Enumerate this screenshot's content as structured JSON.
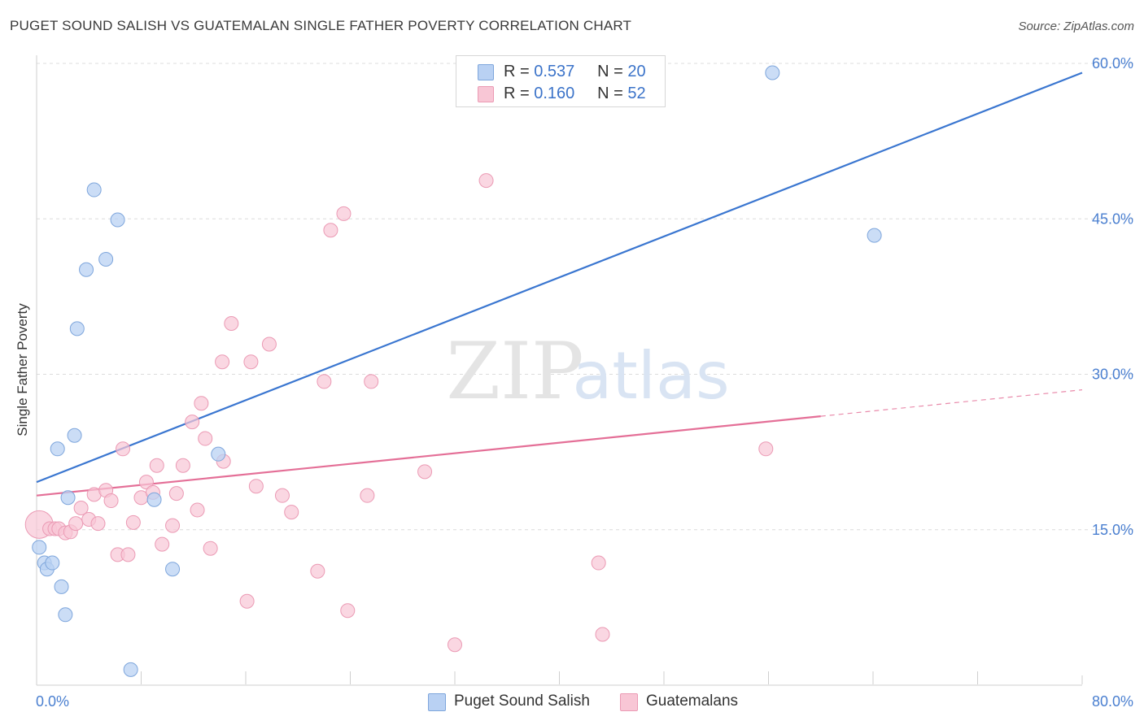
{
  "header": {
    "title": "PUGET SOUND SALISH VS GUATEMALAN SINGLE FATHER POVERTY CORRELATION CHART",
    "source": "Source: ZipAtlas.com"
  },
  "watermark": {
    "zip": "ZIP",
    "atlas": "atlas"
  },
  "legend_top": [
    {
      "r_label": "R = ",
      "r_value": "0.537",
      "n_label": "N = ",
      "n_value": "20"
    },
    {
      "r_label": "R = ",
      "r_value": "0.160",
      "n_label": "N = ",
      "n_value": "52"
    }
  ],
  "legend_bottom": [
    {
      "label": "Puget Sound Salish"
    },
    {
      "label": "Guatemalans"
    }
  ],
  "colors": {
    "blue_fill": "#b9d1f3",
    "blue_stroke": "#7ea6dc",
    "blue_line": "#3a76d0",
    "pink_fill": "#f8c6d5",
    "pink_stroke": "#eb9ab4",
    "pink_line": "#e46f97",
    "axis_text": "#4a7fd0",
    "grid": "#dcdcdc"
  },
  "chart_data": {
    "type": "scatter",
    "title": "PUGET SOUND SALISH VS GUATEMALAN SINGLE FATHER POVERTY CORRELATION CHART",
    "xlabel": "",
    "ylabel": "Single Father Poverty",
    "xlim": [
      0,
      80
    ],
    "ylim": [
      0,
      60
    ],
    "x_tick_labels": [
      {
        "value": 0,
        "label": "0.0%"
      },
      {
        "value": 80,
        "label": "80.0%"
      }
    ],
    "y_tick_labels": [
      {
        "value": 15,
        "label": "15.0%"
      },
      {
        "value": 30,
        "label": "30.0%"
      },
      {
        "value": 45,
        "label": "45.0%"
      },
      {
        "value": 60,
        "label": "60.0%"
      }
    ],
    "grid": true,
    "legend_position": "top-center",
    "series": [
      {
        "name": "Puget Sound Salish",
        "color": "blue",
        "points": [
          [
            0.2,
            13.3
          ],
          [
            0.6,
            11.8
          ],
          [
            0.8,
            11.2
          ],
          [
            1.2,
            11.8
          ],
          [
            1.6,
            22.8
          ],
          [
            1.9,
            9.5
          ],
          [
            2.2,
            6.8
          ],
          [
            2.4,
            18.1
          ],
          [
            2.9,
            24.1
          ],
          [
            3.1,
            34.4
          ],
          [
            3.8,
            40.1
          ],
          [
            4.4,
            47.8
          ],
          [
            5.3,
            41.1
          ],
          [
            6.2,
            44.9
          ],
          [
            7.2,
            1.5
          ],
          [
            9.0,
            17.9
          ],
          [
            10.4,
            11.2
          ],
          [
            13.9,
            22.3
          ],
          [
            56.3,
            59.1
          ],
          [
            64.1,
            43.4
          ]
        ],
        "trend": {
          "x": [
            0,
            80
          ],
          "y": [
            19.6,
            59.1
          ]
        }
      },
      {
        "name": "Guatemalans",
        "color": "pink",
        "points": [
          [
            0.2,
            15.5
          ],
          [
            1.0,
            15.1
          ],
          [
            1.4,
            15.1
          ],
          [
            1.7,
            15.1
          ],
          [
            2.2,
            14.7
          ],
          [
            2.6,
            14.8
          ],
          [
            3.0,
            15.6
          ],
          [
            3.4,
            17.1
          ],
          [
            4.0,
            16.0
          ],
          [
            4.4,
            18.4
          ],
          [
            4.7,
            15.6
          ],
          [
            5.3,
            18.8
          ],
          [
            5.7,
            17.8
          ],
          [
            6.2,
            12.6
          ],
          [
            6.6,
            22.8
          ],
          [
            7.0,
            12.6
          ],
          [
            7.4,
            15.7
          ],
          [
            8.0,
            18.1
          ],
          [
            8.4,
            19.6
          ],
          [
            8.9,
            18.6
          ],
          [
            9.2,
            21.2
          ],
          [
            9.6,
            13.6
          ],
          [
            10.4,
            15.4
          ],
          [
            10.7,
            18.5
          ],
          [
            11.2,
            21.2
          ],
          [
            11.9,
            25.4
          ],
          [
            12.3,
            16.9
          ],
          [
            12.6,
            27.2
          ],
          [
            12.9,
            23.8
          ],
          [
            13.3,
            13.2
          ],
          [
            14.3,
            21.6
          ],
          [
            14.2,
            31.2
          ],
          [
            14.9,
            34.9
          ],
          [
            16.1,
            8.1
          ],
          [
            16.4,
            31.2
          ],
          [
            16.8,
            19.2
          ],
          [
            17.8,
            32.9
          ],
          [
            18.8,
            18.3
          ],
          [
            19.5,
            16.7
          ],
          [
            21.5,
            11.0
          ],
          [
            22.0,
            29.3
          ],
          [
            22.5,
            43.9
          ],
          [
            23.5,
            45.5
          ],
          [
            23.8,
            7.2
          ],
          [
            25.3,
            18.3
          ],
          [
            25.6,
            29.3
          ],
          [
            29.7,
            20.6
          ],
          [
            32.0,
            3.9
          ],
          [
            34.4,
            48.7
          ],
          [
            43.0,
            11.8
          ],
          [
            43.3,
            4.9
          ],
          [
            55.8,
            22.8
          ]
        ],
        "trend": {
          "x": [
            0,
            80
          ],
          "y": [
            18.3,
            28.5
          ],
          "solid_until_x": 60
        }
      }
    ]
  }
}
